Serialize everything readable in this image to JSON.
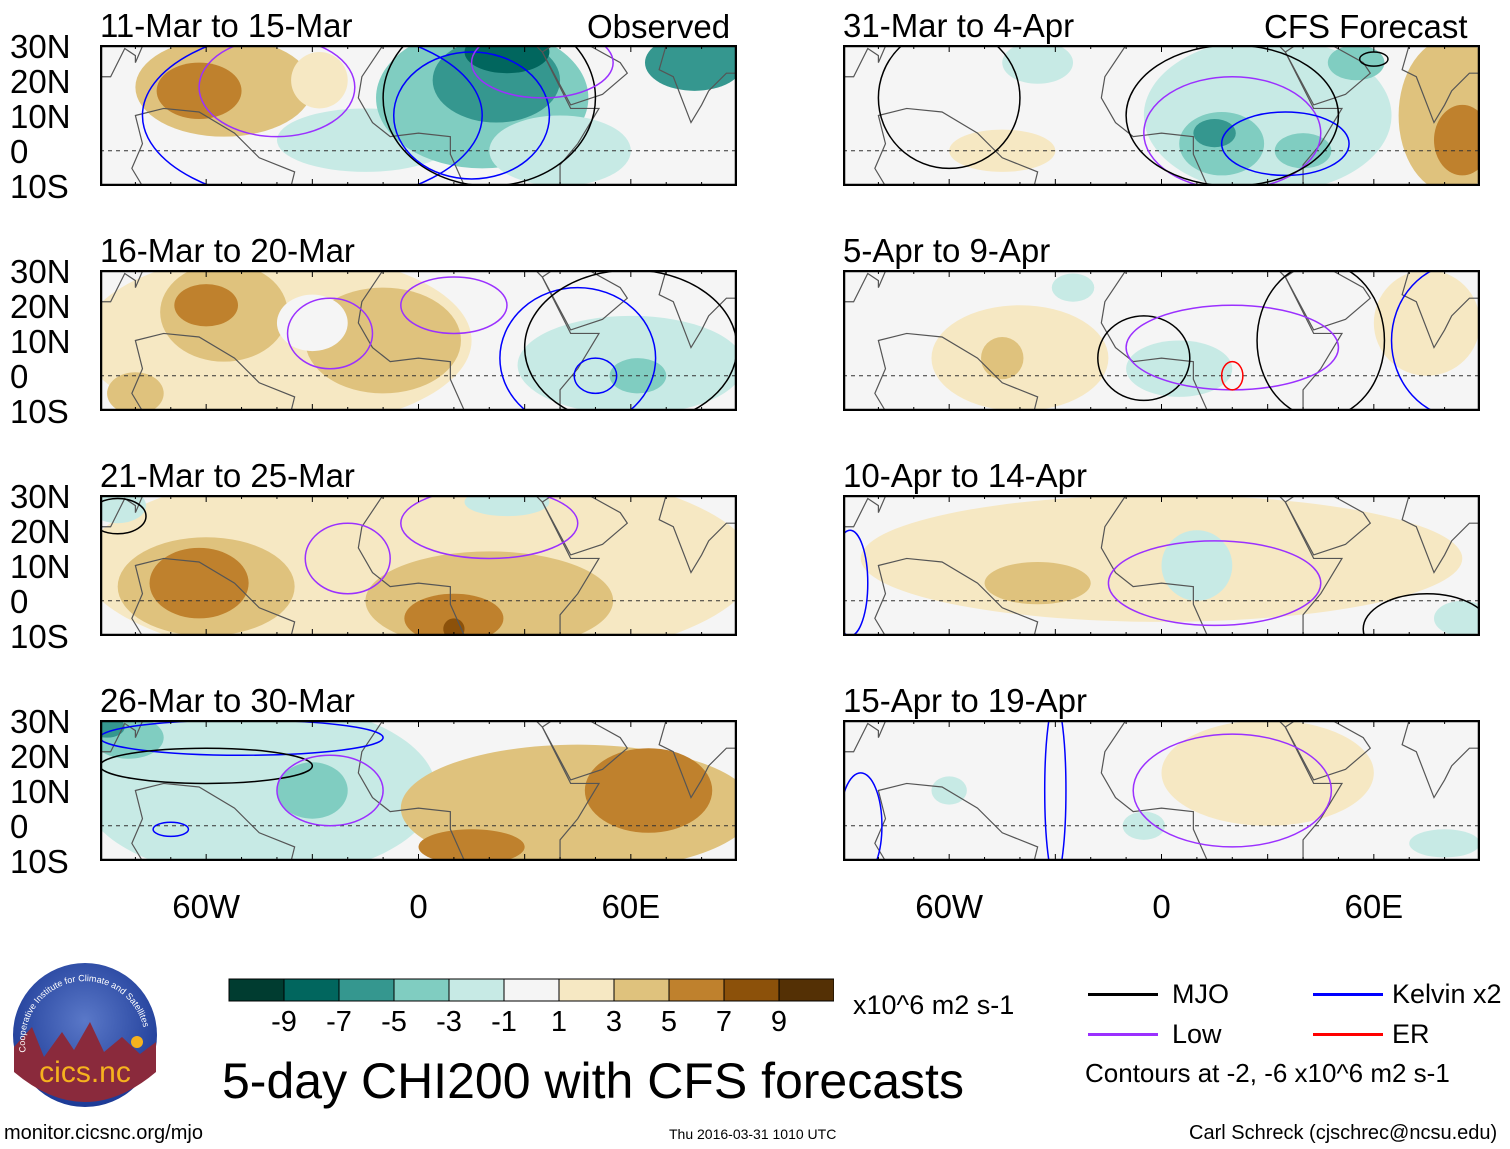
{
  "left_header": "Observed",
  "right_header": "CFS Forecast",
  "lat_ticks": [
    "30N",
    "20N",
    "10N",
    "0",
    "10S"
  ],
  "lon_ticks": [
    "60W",
    "0",
    "60E"
  ],
  "colors": [
    "#003c30",
    "#01665e",
    "#35978f",
    "#80cdc1",
    "#c7eae5",
    "#f5f5f5",
    "#f6e8c3",
    "#dfc27d",
    "#bf812d",
    "#8c510a",
    "#543005"
  ],
  "contour_colors": {
    "mjo": "#000000",
    "kelvin": "#0000ff",
    "low": "#9b30ff",
    "er": "#ff0000"
  },
  "colorbar": {
    "labels": [
      "-9",
      "-7",
      "-5",
      "-3",
      "-1",
      "1",
      "3",
      "5",
      "7",
      "9"
    ],
    "units": "x10^6 m2 s-1"
  },
  "legend": {
    "items": [
      {
        "key": "mjo",
        "label": "MJO"
      },
      {
        "key": "kelvin",
        "label": "Kelvin x2"
      },
      {
        "key": "low",
        "label": "Low"
      },
      {
        "key": "er",
        "label": "ER"
      }
    ],
    "note": "Contours at -2, -6 x10^6 m2 s-1"
  },
  "main_title": "5-day CHI200 with CFS forecasts",
  "footer": {
    "url": "monitor.cicsnc.org/mjo",
    "timestamp": "Thu 2016-03-31 1010 UTC",
    "author": "Carl Schreck (cjschrec@ncsu.edu)"
  },
  "logo": {
    "name": "cics.nc",
    "arc": "Cooperative Institute for Climate and Satellites"
  },
  "chart_data": {
    "type": "heatmap",
    "lon_range": [
      -90,
      90
    ],
    "lat_range": [
      -10,
      30
    ],
    "panels": [
      {
        "title": "11-Mar to 15-Mar",
        "features": [
          {
            "lon": -55,
            "lat": 18,
            "rl": 25,
            "rt": 14,
            "v": 4
          },
          {
            "lon": -62,
            "lat": 17,
            "rl": 12,
            "rt": 8,
            "v": 6
          },
          {
            "lon": -28,
            "lat": 20,
            "rl": 8,
            "rt": 8,
            "v": 2
          },
          {
            "lon": -15,
            "lat": 3,
            "rl": 25,
            "rt": 9,
            "v": -2
          },
          {
            "lon": 18,
            "lat": 15,
            "rl": 30,
            "rt": 20,
            "v": -4
          },
          {
            "lon": 22,
            "lat": 20,
            "rl": 18,
            "rt": 12,
            "v": -6
          },
          {
            "lon": 25,
            "lat": 28,
            "rl": 12,
            "rt": 6,
            "v": -8
          },
          {
            "lon": 40,
            "lat": 0,
            "rl": 20,
            "rt": 10,
            "v": -2
          },
          {
            "lon": 78,
            "lat": 25,
            "rl": 14,
            "rt": 8,
            "v": -6
          }
        ],
        "contours": [
          {
            "t": "kelvin",
            "lon": -30,
            "lat": 10,
            "rl": 48,
            "rt": 25
          },
          {
            "t": "low",
            "lon": -40,
            "lat": 18,
            "rl": 22,
            "rt": 14
          },
          {
            "t": "mjo",
            "lon": 20,
            "lat": 15,
            "rl": 30,
            "rt": 25
          },
          {
            "t": "kelvin",
            "lon": 15,
            "lat": 10,
            "rl": 22,
            "rt": 18
          },
          {
            "t": "low",
            "lon": 35,
            "lat": 25,
            "rl": 20,
            "rt": 10
          }
        ]
      },
      {
        "title": "16-Mar to 20-Mar",
        "features": [
          {
            "lon": -40,
            "lat": 10,
            "rl": 55,
            "rt": 25,
            "v": 2
          },
          {
            "lon": -55,
            "lat": 18,
            "rl": 18,
            "rt": 14,
            "v": 4
          },
          {
            "lon": -60,
            "lat": 20,
            "rl": 9,
            "rt": 6,
            "v": 6
          },
          {
            "lon": -10,
            "lat": 10,
            "rl": 22,
            "rt": 15,
            "v": 4
          },
          {
            "lon": -80,
            "lat": -5,
            "rl": 8,
            "rt": 6,
            "v": 4
          },
          {
            "lon": -30,
            "lat": 15,
            "rl": 10,
            "rt": 8,
            "v": 0
          },
          {
            "lon": 60,
            "lat": 3,
            "rl": 32,
            "rt": 14,
            "v": -2
          },
          {
            "lon": 62,
            "lat": 0,
            "rl": 8,
            "rt": 5,
            "v": -4
          }
        ],
        "contours": [
          {
            "t": "low",
            "lon": -25,
            "lat": 12,
            "rl": 12,
            "rt": 10
          },
          {
            "t": "low",
            "lon": 10,
            "lat": 20,
            "rl": 15,
            "rt": 8
          },
          {
            "t": "kelvin",
            "lon": 45,
            "lat": 5,
            "rl": 22,
            "rt": 20
          },
          {
            "t": "mjo",
            "lon": 60,
            "lat": 8,
            "rl": 30,
            "rt": 22
          },
          {
            "t": "kelvin",
            "lon": 50,
            "lat": 0,
            "rl": 6,
            "rt": 5
          }
        ]
      },
      {
        "title": "21-Mar to 25-Mar",
        "features": [
          {
            "lon": 0,
            "lat": 10,
            "rl": 95,
            "rt": 30,
            "v": 2
          },
          {
            "lon": -60,
            "lat": 4,
            "rl": 25,
            "rt": 14,
            "v": 4
          },
          {
            "lon": -62,
            "lat": 5,
            "rl": 14,
            "rt": 10,
            "v": 6
          },
          {
            "lon": 20,
            "lat": 0,
            "rl": 35,
            "rt": 14,
            "v": 4
          },
          {
            "lon": 10,
            "lat": -5,
            "rl": 14,
            "rt": 7,
            "v": 6
          },
          {
            "lon": 10,
            "lat": -8,
            "rl": 3,
            "rt": 3,
            "v": 8
          },
          {
            "lon": -85,
            "lat": 27,
            "rl": 8,
            "rt": 5,
            "v": -2
          },
          {
            "lon": 25,
            "lat": 28,
            "rl": 12,
            "rt": 4,
            "v": -2
          }
        ],
        "contours": [
          {
            "t": "low",
            "lon": -20,
            "lat": 12,
            "rl": 12,
            "rt": 10
          },
          {
            "t": "low",
            "lon": 20,
            "lat": 22,
            "rl": 25,
            "rt": 10
          },
          {
            "t": "mjo",
            "lon": -85,
            "lat": 24,
            "rl": 8,
            "rt": 5
          }
        ]
      },
      {
        "title": "26-Mar to 30-Mar",
        "features": [
          {
            "lon": -45,
            "lat": 10,
            "rl": 50,
            "rt": 25,
            "v": -2
          },
          {
            "lon": -82,
            "lat": 25,
            "rl": 10,
            "rt": 6,
            "v": -4
          },
          {
            "lon": -88,
            "lat": 28,
            "rl": 5,
            "rt": 3,
            "v": -6
          },
          {
            "lon": -30,
            "lat": 10,
            "rl": 10,
            "rt": 8,
            "v": -4
          },
          {
            "lon": 45,
            "lat": 5,
            "rl": 50,
            "rt": 18,
            "v": 4
          },
          {
            "lon": 65,
            "lat": 10,
            "rl": 18,
            "rt": 12,
            "v": 6
          },
          {
            "lon": 15,
            "lat": -6,
            "rl": 15,
            "rt": 5,
            "v": 6
          }
        ],
        "contours": [
          {
            "t": "kelvin",
            "lon": -50,
            "lat": 25,
            "rl": 40,
            "rt": 5
          },
          {
            "t": "mjo",
            "lon": -60,
            "lat": 17,
            "rl": 30,
            "rt": 5
          },
          {
            "t": "low",
            "lon": -25,
            "lat": 10,
            "rl": 15,
            "rt": 10
          },
          {
            "t": "kelvin",
            "lon": -70,
            "lat": -1,
            "rl": 5,
            "rt": 2
          }
        ]
      },
      {
        "title": "31-Mar to 4-Apr",
        "features": [
          {
            "lon": 30,
            "lat": 10,
            "rl": 35,
            "rt": 22,
            "v": -2
          },
          {
            "lon": 17,
            "lat": 2,
            "rl": 12,
            "rt": 9,
            "v": -4
          },
          {
            "lon": 15,
            "lat": 5,
            "rl": 6,
            "rt": 4,
            "v": -6
          },
          {
            "lon": 40,
            "lat": 0,
            "rl": 8,
            "rt": 5,
            "v": -4
          },
          {
            "lon": 55,
            "lat": 25,
            "rl": 8,
            "rt": 5,
            "v": -4
          },
          {
            "lon": -35,
            "lat": 25,
            "rl": 10,
            "rt": 6,
            "v": -2
          },
          {
            "lon": 82,
            "lat": 10,
            "rl": 15,
            "rt": 22,
            "v": 4
          },
          {
            "lon": 85,
            "lat": 3,
            "rl": 8,
            "rt": 10,
            "v": 6
          },
          {
            "lon": -45,
            "lat": 0,
            "rl": 15,
            "rt": 6,
            "v": 2
          }
        ],
        "contours": [
          {
            "t": "mjo",
            "lon": -60,
            "lat": 15,
            "rl": 20,
            "rt": 20
          },
          {
            "t": "low",
            "lon": 20,
            "lat": 5,
            "rl": 25,
            "rt": 16
          },
          {
            "t": "kelvin",
            "lon": 35,
            "lat": 2,
            "rl": 18,
            "rt": 9
          },
          {
            "t": "mjo",
            "lon": 20,
            "lat": 10,
            "rl": 30,
            "rt": 20
          },
          {
            "t": "mjo",
            "lon": 60,
            "lat": 26,
            "rl": 4,
            "rt": 2
          }
        ]
      },
      {
        "title": "5-Apr to 9-Apr",
        "features": [
          {
            "lon": -40,
            "lat": 5,
            "rl": 25,
            "rt": 15,
            "v": 2
          },
          {
            "lon": -45,
            "lat": 5,
            "rl": 6,
            "rt": 6,
            "v": 4
          },
          {
            "lon": 5,
            "lat": 2,
            "rl": 15,
            "rt": 8,
            "v": -2
          },
          {
            "lon": 75,
            "lat": 15,
            "rl": 15,
            "rt": 15,
            "v": 2
          },
          {
            "lon": -25,
            "lat": 25,
            "rl": 6,
            "rt": 4,
            "v": -2
          }
        ],
        "contours": [
          {
            "t": "mjo",
            "lon": -5,
            "lat": 5,
            "rl": 13,
            "rt": 12
          },
          {
            "t": "low",
            "lon": 20,
            "lat": 8,
            "rl": 30,
            "rt": 12
          },
          {
            "t": "er",
            "lon": 20,
            "lat": 0,
            "rl": 3,
            "rt": 4
          },
          {
            "t": "mjo",
            "lon": 45,
            "lat": 10,
            "rl": 18,
            "rt": 22
          },
          {
            "t": "kelvin",
            "lon": 85,
            "lat": 10,
            "rl": 20,
            "rt": 22
          }
        ]
      },
      {
        "title": "10-Apr to 14-Apr",
        "features": [
          {
            "lon": 0,
            "lat": 12,
            "rl": 85,
            "rt": 18,
            "v": 2
          },
          {
            "lon": -35,
            "lat": 5,
            "rl": 15,
            "rt": 6,
            "v": 4
          },
          {
            "lon": 10,
            "lat": 10,
            "rl": 10,
            "rt": 10,
            "v": -2
          },
          {
            "lon": 85,
            "lat": -5,
            "rl": 8,
            "rt": 5,
            "v": -2
          }
        ],
        "contours": [
          {
            "t": "low",
            "lon": 15,
            "lat": 5,
            "rl": 30,
            "rt": 12
          },
          {
            "t": "mjo",
            "lon": 75,
            "lat": -8,
            "rl": 18,
            "rt": 10
          },
          {
            "t": "kelvin",
            "lon": -88,
            "lat": 5,
            "rl": 5,
            "rt": 15
          }
        ]
      },
      {
        "title": "15-Apr to 19-Apr",
        "features": [
          {
            "lon": 30,
            "lat": 15,
            "rl": 30,
            "rt": 15,
            "v": 2
          },
          {
            "lon": -60,
            "lat": 10,
            "rl": 5,
            "rt": 4,
            "v": -2
          },
          {
            "lon": -5,
            "lat": 0,
            "rl": 6,
            "rt": 4,
            "v": -2
          },
          {
            "lon": 80,
            "lat": -5,
            "rl": 10,
            "rt": 4,
            "v": -2
          }
        ],
        "contours": [
          {
            "t": "low",
            "lon": 20,
            "lat": 10,
            "rl": 28,
            "rt": 16
          },
          {
            "t": "kelvin",
            "lon": -30,
            "lat": 10,
            "rl": 3,
            "rt": 25
          },
          {
            "t": "kelvin",
            "lon": -85,
            "lat": 0,
            "rl": 6,
            "rt": 15
          }
        ]
      }
    ]
  }
}
